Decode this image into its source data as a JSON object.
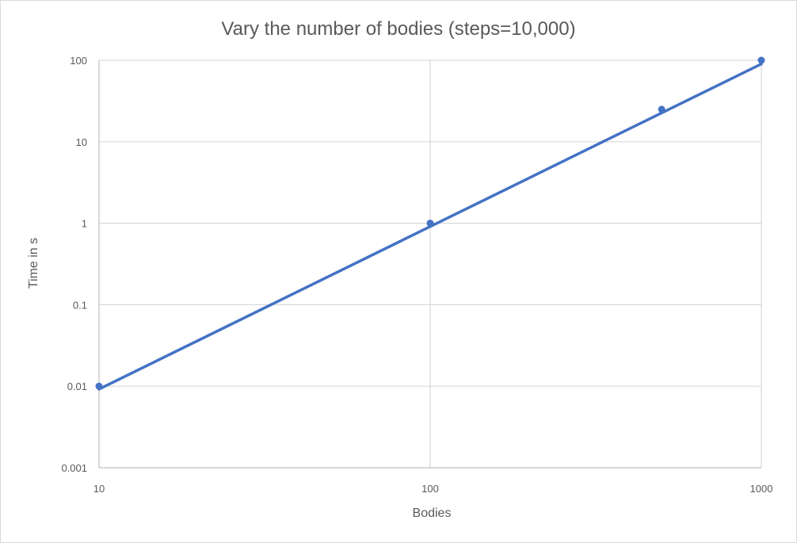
{
  "chart_data": {
    "type": "scatter",
    "title": "Vary the number of bodies (steps=10,000)",
    "xlabel": "Bodies",
    "ylabel": "Time in s",
    "x_scale": "log",
    "y_scale": "log",
    "xlim": [
      10,
      1000
    ],
    "ylim": [
      0.001,
      100
    ],
    "x_ticks": [
      {
        "value": 10,
        "label": "10"
      },
      {
        "value": 100,
        "label": "100"
      },
      {
        "value": 1000,
        "label": "1000"
      }
    ],
    "y_ticks": [
      {
        "value": 0.001,
        "label": "0.001"
      },
      {
        "value": 0.01,
        "label": "0.01"
      },
      {
        "value": 0.1,
        "label": "0.1"
      },
      {
        "value": 1,
        "label": "1"
      },
      {
        "value": 10,
        "label": "10"
      },
      {
        "value": 100,
        "label": "100"
      }
    ],
    "grid": true,
    "legend": "none",
    "series": [
      {
        "points": [
          {
            "x": 10,
            "y": 0.01
          },
          {
            "x": 100,
            "y": 1
          },
          {
            "x": 500,
            "y": 25
          },
          {
            "x": 1000,
            "y": 100
          }
        ],
        "color": "#4472C4"
      }
    ],
    "trendline": {
      "type": "power",
      "from": {
        "x": 10,
        "y": 0.0092
      },
      "to": {
        "x": 1000,
        "y": 90
      },
      "color": "#4472C4"
    }
  }
}
